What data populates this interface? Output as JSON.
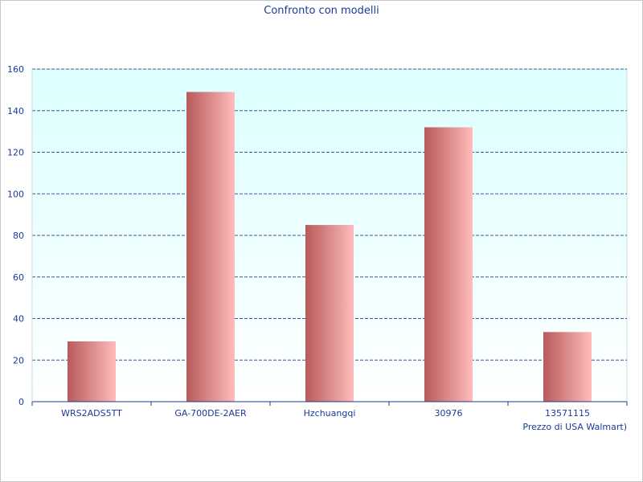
{
  "chart_data": {
    "type": "bar",
    "title": "Confronto con modelli",
    "xlabel": "Prezzo di USA Walmart)",
    "ylabel": "",
    "categories": [
      "WRS2ADS5TT",
      "GA-700DE-2AER",
      "Hzchuangqi",
      "30976",
      "13571115"
    ],
    "values": [
      29,
      149,
      85,
      132,
      33.5
    ],
    "ylim": [
      0,
      160
    ],
    "yticks": [
      0,
      20,
      40,
      60,
      80,
      100,
      120,
      140,
      160
    ],
    "grid": true,
    "legend": "none",
    "colors": {
      "plot_bg_top": "#dcffff",
      "plot_bg_bottom": "#ffffff",
      "bar_dark": "#b85a5a",
      "bar_light": "#ffbcbc",
      "grid": "#3a5a9a",
      "text": "#1a3a9a"
    }
  }
}
